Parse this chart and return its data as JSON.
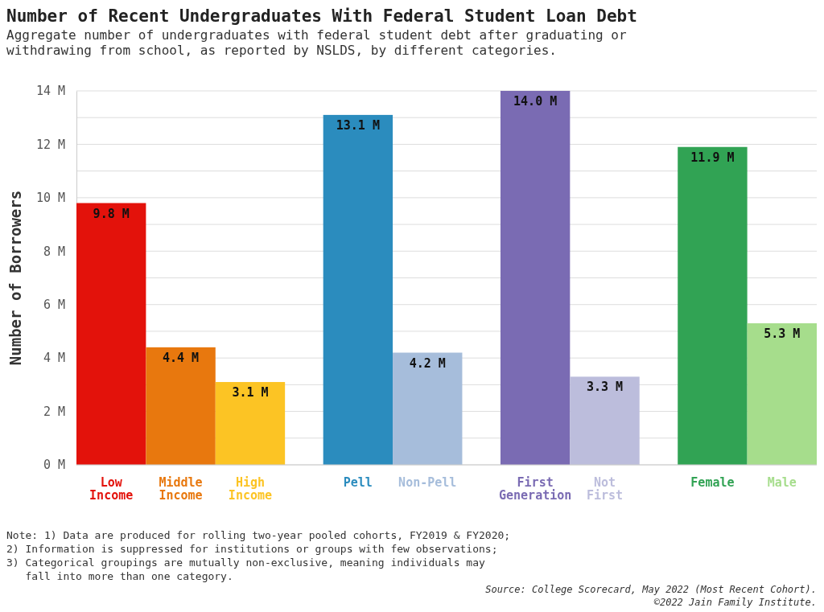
{
  "chart_data": {
    "type": "bar",
    "title": "Number of Recent Undergraduates With Federal Student Loan Debt",
    "subtitle": "Aggregate number of undergraduates with federal student debt after graduating or withdrawing from school, as reported by NSLDS, by different categories.",
    "ylabel": "Number of Borrowers",
    "categories": [
      "Low Income",
      "Middle Income",
      "High Income",
      null,
      "Pell",
      "Non-Pell",
      null,
      "First Generation",
      "Not First",
      null,
      "Female",
      "Male"
    ],
    "values": [
      9.8,
      4.4,
      3.1,
      null,
      13.1,
      4.2,
      null,
      14.0,
      3.3,
      null,
      11.9,
      5.3
    ],
    "value_labels": [
      "9.8 M",
      "4.4 M",
      "3.1 M",
      null,
      "13.1 M",
      "4.2 M",
      null,
      "14.0 M",
      "3.3 M",
      null,
      "11.9 M",
      "5.3 M"
    ],
    "colors": [
      "#e3120b",
      "#e8780e",
      "#fcc424",
      null,
      "#2b8cbe",
      "#a6bddb",
      null,
      "#7a6bb3",
      "#bcbddc",
      null,
      "#31a354",
      "#a6dd8c"
    ],
    "ylim": [
      0,
      14
    ],
    "yticks": [
      {
        "value": 0,
        "label": "0 M"
      },
      {
        "value": 1,
        "label": null
      },
      {
        "value": 2,
        "label": "2 M"
      },
      {
        "value": 3,
        "label": null
      },
      {
        "value": 4,
        "label": "4 M"
      },
      {
        "value": 5,
        "label": null
      },
      {
        "value": 6,
        "label": "6 M"
      },
      {
        "value": 7,
        "label": null
      },
      {
        "value": 8,
        "label": "8 M"
      },
      {
        "value": 9,
        "label": null
      },
      {
        "value": 10,
        "label": "10 M"
      },
      {
        "value": 11,
        "label": null
      },
      {
        "value": 12,
        "label": "12 M"
      },
      {
        "value": 13,
        "label": null
      },
      {
        "value": 14,
        "label": "14 M"
      }
    ],
    "grid": "y",
    "annotations": [
      "Note: 1) Data are produced for rolling two-year pooled cohorts, FY2019 & FY2020;",
      "2) Information is suppressed for institutions or groups with few observations;",
      "3) Categorical groupings are mutually non-exclusive, meaning individuals may",
      "   fall into more than one category.",
      "Source: College Scorecard, May 2022 (Most Recent Cohort).",
      "©2022 Jain Family Institute."
    ]
  }
}
